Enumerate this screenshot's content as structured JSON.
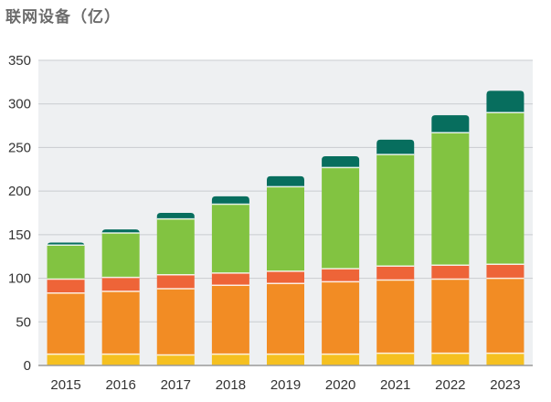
{
  "title": "联网设备（亿）",
  "chart_data": {
    "type": "bar",
    "stacked": true,
    "title": "联网设备（亿）",
    "categories": [
      "2015",
      "2016",
      "2017",
      "2018",
      "2019",
      "2020",
      "2021",
      "2022",
      "2023"
    ],
    "series": [
      {
        "color": "#f5c020",
        "values": [
          13,
          13,
          12,
          13,
          13,
          13,
          14,
          14,
          14
        ]
      },
      {
        "color": "#f28c24",
        "values": [
          70,
          72,
          76,
          79,
          81,
          83,
          84,
          85,
          86
        ]
      },
      {
        "color": "#ee6438",
        "values": [
          16,
          16,
          16,
          14,
          14,
          15,
          16,
          16,
          16
        ]
      },
      {
        "color": "#82c341",
        "values": [
          39,
          51,
          64,
          79,
          97,
          116,
          128,
          152,
          174
        ]
      },
      {
        "color": "#076e5e",
        "values": [
          3,
          4,
          7,
          9,
          12,
          13,
          17,
          20,
          25
        ]
      }
    ],
    "ylim": [
      0,
      350
    ],
    "yticks": [
      0,
      50,
      100,
      150,
      200,
      250,
      300,
      350
    ],
    "grid": true,
    "legend": "none"
  }
}
